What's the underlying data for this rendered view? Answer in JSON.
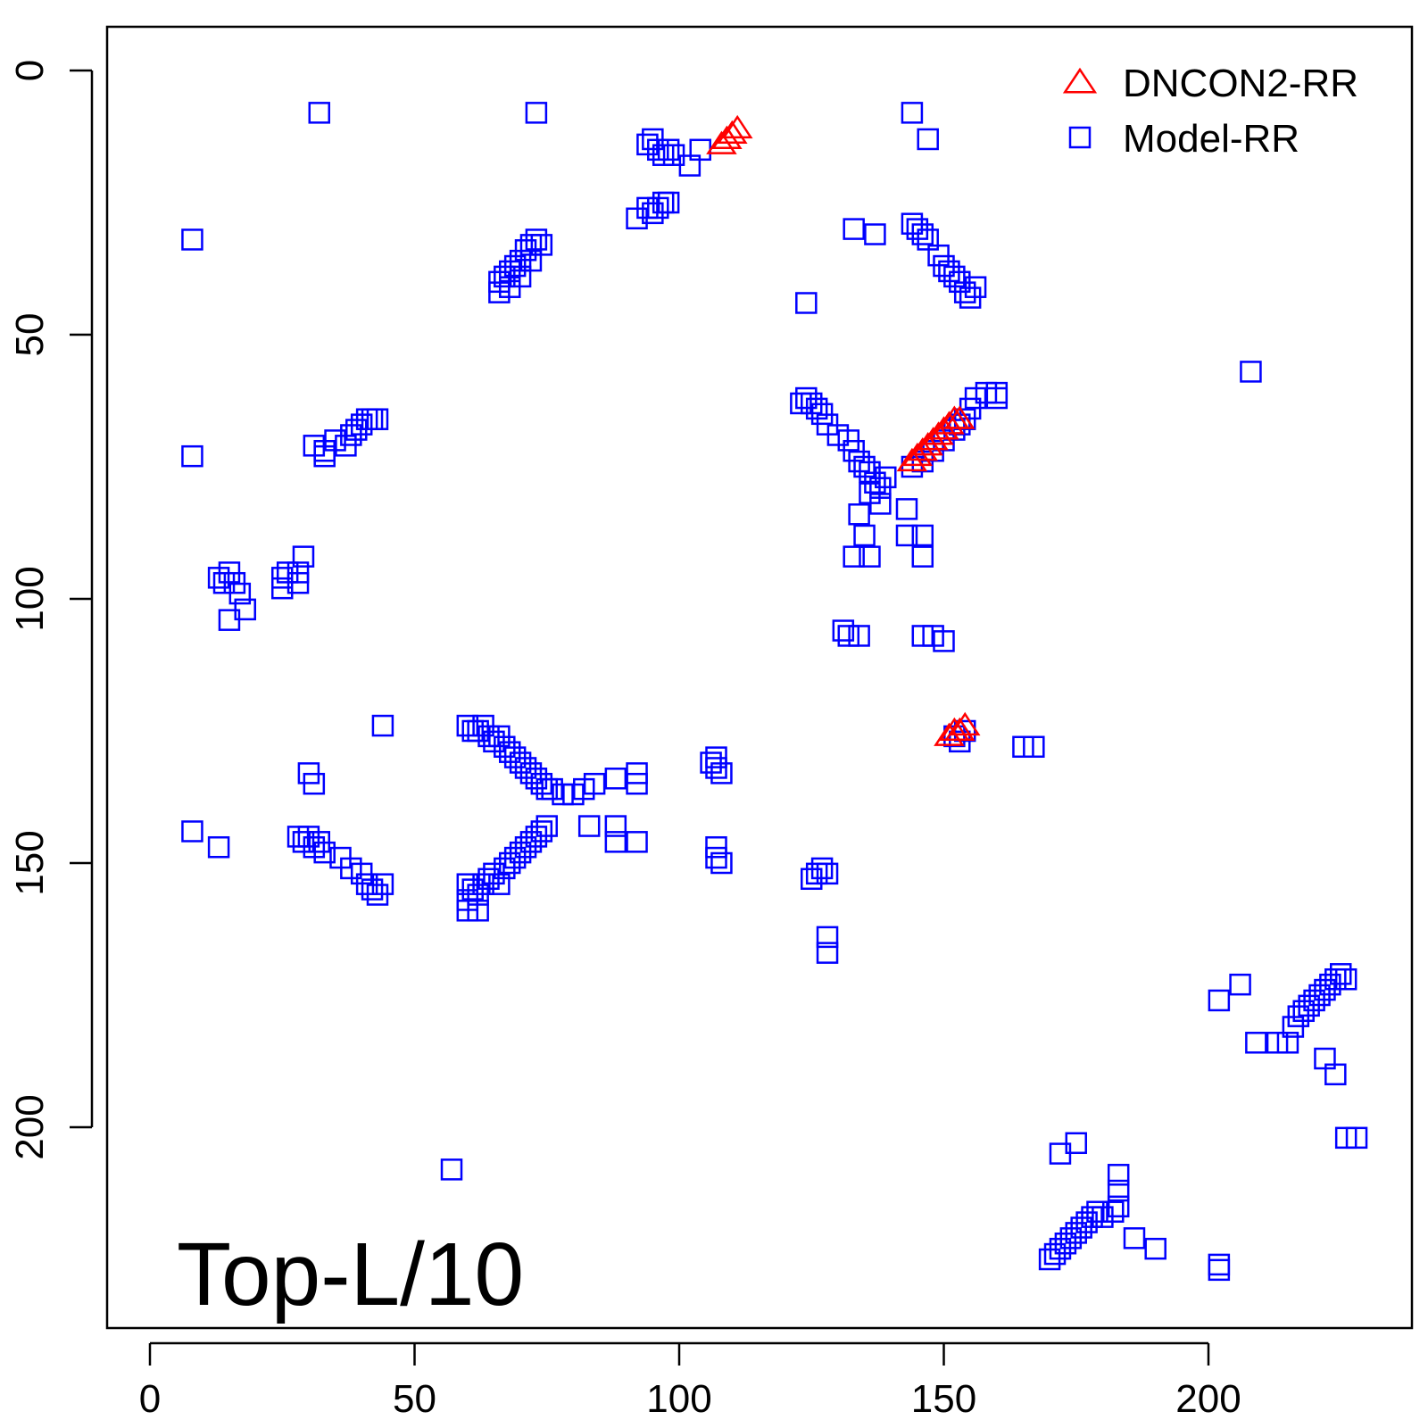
{
  "chart_data": {
    "type": "scatter",
    "title": "",
    "xlabel": "",
    "ylabel": "",
    "xlim": [
      -8,
      238
    ],
    "ylim": [
      238,
      -8
    ],
    "y_inverted": true,
    "grid": false,
    "x_ticks": [
      0,
      50,
      100,
      150,
      200
    ],
    "y_ticks": [
      0,
      50,
      100,
      150,
      200
    ],
    "x_tick_labels": [
      "0",
      "50",
      "100",
      "150",
      "200"
    ],
    "y_tick_labels": [
      "0",
      "50",
      "100",
      "150",
      "200"
    ],
    "annotation": "Top-L/10",
    "legend": {
      "position": "top-right",
      "entries": [
        {
          "label": "DNCON2-RR",
          "marker": "triangle",
          "color": "#ff0000"
        },
        {
          "label": "Model-RR",
          "marker": "square",
          "color": "#0000ff"
        }
      ]
    },
    "series": [
      {
        "name": "Model-RR",
        "marker": "square",
        "color": "#0000ff",
        "points": [
          [
            32,
            8
          ],
          [
            73,
            8
          ],
          [
            144,
            8
          ],
          [
            147,
            13
          ],
          [
            8,
            32
          ],
          [
            8,
            73
          ],
          [
            124,
            44
          ],
          [
            208,
            57
          ],
          [
            57,
            208
          ],
          [
            94,
            14
          ],
          [
            95,
            13
          ],
          [
            96,
            15
          ],
          [
            97,
            16
          ],
          [
            98,
            15
          ],
          [
            99,
            16
          ],
          [
            102,
            18
          ],
          [
            104,
            15
          ],
          [
            92,
            28
          ],
          [
            94,
            26
          ],
          [
            95,
            27
          ],
          [
            96,
            26
          ],
          [
            97,
            25
          ],
          [
            98,
            25
          ],
          [
            66,
            40
          ],
          [
            67,
            39
          ],
          [
            68,
            38
          ],
          [
            69,
            37
          ],
          [
            70,
            36
          ],
          [
            71,
            34
          ],
          [
            72,
            33
          ],
          [
            73,
            32
          ],
          [
            66,
            42
          ],
          [
            68,
            41
          ],
          [
            70,
            39
          ],
          [
            72,
            36
          ],
          [
            74,
            33
          ],
          [
            133,
            30
          ],
          [
            137,
            31
          ],
          [
            144,
            29
          ],
          [
            145,
            30
          ],
          [
            146,
            31
          ],
          [
            147,
            32
          ],
          [
            149,
            35
          ],
          [
            150,
            37
          ],
          [
            151,
            38
          ],
          [
            152,
            39
          ],
          [
            153,
            40
          ],
          [
            154,
            42
          ],
          [
            155,
            43
          ],
          [
            156,
            41
          ],
          [
            123,
            63
          ],
          [
            124,
            62
          ],
          [
            125,
            63
          ],
          [
            126,
            64
          ],
          [
            127,
            65
          ],
          [
            128,
            67
          ],
          [
            130,
            69
          ],
          [
            132,
            70
          ],
          [
            133,
            72
          ],
          [
            134,
            74
          ],
          [
            135,
            75
          ],
          [
            136,
            76
          ],
          [
            137,
            78
          ],
          [
            138,
            79
          ],
          [
            139,
            77
          ],
          [
            136,
            80
          ],
          [
            138,
            82
          ],
          [
            134,
            84
          ],
          [
            135,
            88
          ],
          [
            133,
            92
          ],
          [
            136,
            92
          ],
          [
            143,
            83
          ],
          [
            143,
            88
          ],
          [
            146,
            88
          ],
          [
            146,
            92
          ],
          [
            144,
            75
          ],
          [
            146,
            74
          ],
          [
            148,
            72
          ],
          [
            150,
            70
          ],
          [
            152,
            68
          ],
          [
            154,
            66
          ],
          [
            155,
            64
          ],
          [
            156,
            62
          ],
          [
            158,
            61
          ],
          [
            160,
            61
          ],
          [
            160,
            62
          ],
          [
            153,
            67
          ],
          [
            31,
            71
          ],
          [
            33,
            72
          ],
          [
            35,
            70
          ],
          [
            37,
            71
          ],
          [
            38,
            69
          ],
          [
            39,
            68
          ],
          [
            40,
            67
          ],
          [
            41,
            66
          ],
          [
            42,
            66
          ],
          [
            43,
            66
          ],
          [
            33,
            73
          ],
          [
            13,
            96
          ],
          [
            14,
            97
          ],
          [
            15,
            95
          ],
          [
            16,
            97
          ],
          [
            17,
            99
          ],
          [
            18,
            102
          ],
          [
            15,
            104
          ],
          [
            25,
            96
          ],
          [
            26,
            95
          ],
          [
            28,
            95
          ],
          [
            29,
            92
          ],
          [
            28,
            97
          ],
          [
            25,
            98
          ],
          [
            131,
            106
          ],
          [
            132,
            107
          ],
          [
            134,
            107
          ],
          [
            146,
            107
          ],
          [
            148,
            107
          ],
          [
            150,
            108
          ],
          [
            44,
            124
          ],
          [
            60,
            124
          ],
          [
            61,
            125
          ],
          [
            62,
            125
          ],
          [
            63,
            124
          ],
          [
            64,
            126
          ],
          [
            65,
            127
          ],
          [
            66,
            126
          ],
          [
            67,
            128
          ],
          [
            68,
            129
          ],
          [
            69,
            130
          ],
          [
            70,
            131
          ],
          [
            71,
            132
          ],
          [
            72,
            133
          ],
          [
            73,
            134
          ],
          [
            74,
            135
          ],
          [
            75,
            136
          ],
          [
            76,
            136
          ],
          [
            78,
            137
          ],
          [
            80,
            137
          ],
          [
            82,
            136
          ],
          [
            84,
            135
          ],
          [
            88,
            134
          ],
          [
            92,
            133
          ],
          [
            92,
            135
          ],
          [
            30,
            133
          ],
          [
            31,
            135
          ],
          [
            106,
            131
          ],
          [
            107,
            132
          ],
          [
            108,
            133
          ],
          [
            107,
            130
          ],
          [
            152,
            126
          ],
          [
            153,
            127
          ],
          [
            154,
            125
          ],
          [
            165,
            128
          ],
          [
            167,
            128
          ],
          [
            8,
            144
          ],
          [
            13,
            147
          ],
          [
            28,
            145
          ],
          [
            29,
            146
          ],
          [
            30,
            145
          ],
          [
            31,
            147
          ],
          [
            32,
            146
          ],
          [
            33,
            148
          ],
          [
            36,
            149
          ],
          [
            38,
            151
          ],
          [
            40,
            152
          ],
          [
            41,
            154
          ],
          [
            42,
            155
          ],
          [
            43,
            156
          ],
          [
            44,
            154
          ],
          [
            60,
            154
          ],
          [
            61,
            155
          ],
          [
            62,
            156
          ],
          [
            63,
            154
          ],
          [
            64,
            153
          ],
          [
            65,
            152
          ],
          [
            66,
            154
          ],
          [
            67,
            151
          ],
          [
            68,
            150
          ],
          [
            69,
            149
          ],
          [
            70,
            148
          ],
          [
            71,
            147
          ],
          [
            72,
            146
          ],
          [
            73,
            145
          ],
          [
            74,
            144
          ],
          [
            75,
            143
          ],
          [
            60,
            159
          ],
          [
            62,
            159
          ],
          [
            60,
            157
          ],
          [
            83,
            143
          ],
          [
            88,
            143
          ],
          [
            88,
            146
          ],
          [
            92,
            146
          ],
          [
            107,
            147
          ],
          [
            107,
            149
          ],
          [
            108,
            150
          ],
          [
            125,
            153
          ],
          [
            126,
            152
          ],
          [
            127,
            151
          ],
          [
            128,
            152
          ],
          [
            128,
            164
          ],
          [
            128,
            167
          ],
          [
            202,
            176
          ],
          [
            206,
            173
          ],
          [
            209,
            184
          ],
          [
            213,
            184
          ],
          [
            215,
            184
          ],
          [
            216,
            181
          ],
          [
            217,
            179
          ],
          [
            218,
            178
          ],
          [
            219,
            177
          ],
          [
            220,
            176
          ],
          [
            221,
            175
          ],
          [
            222,
            174
          ],
          [
            223,
            173
          ],
          [
            224,
            172
          ],
          [
            225,
            171
          ],
          [
            226,
            172
          ],
          [
            222,
            187
          ],
          [
            224,
            190
          ],
          [
            226,
            202
          ],
          [
            228,
            202
          ],
          [
            172,
            205
          ],
          [
            175,
            203
          ],
          [
            170,
            225
          ],
          [
            171,
            224
          ],
          [
            172,
            223
          ],
          [
            173,
            222
          ],
          [
            174,
            221
          ],
          [
            175,
            220
          ],
          [
            176,
            219
          ],
          [
            177,
            218
          ],
          [
            178,
            217
          ],
          [
            179,
            216
          ],
          [
            180,
            217
          ],
          [
            182,
            216
          ],
          [
            183,
            215
          ],
          [
            183,
            212
          ],
          [
            183,
            209
          ],
          [
            186,
            221
          ],
          [
            190,
            223
          ],
          [
            202,
            226
          ],
          [
            202,
            227
          ]
        ]
      },
      {
        "name": "DNCON2-RR",
        "marker": "triangle",
        "color": "#ff0000",
        "points": [
          [
            108,
            14
          ],
          [
            109,
            13
          ],
          [
            110,
            12
          ],
          [
            111,
            11
          ],
          [
            144,
            74
          ],
          [
            145,
            73
          ],
          [
            146,
            72
          ],
          [
            147,
            71
          ],
          [
            148,
            70
          ],
          [
            149,
            69
          ],
          [
            150,
            68
          ],
          [
            151,
            67
          ],
          [
            152,
            66
          ],
          [
            153,
            66
          ],
          [
            151,
            126
          ],
          [
            152,
            125
          ],
          [
            153,
            125
          ],
          [
            154,
            124
          ]
        ]
      }
    ]
  }
}
